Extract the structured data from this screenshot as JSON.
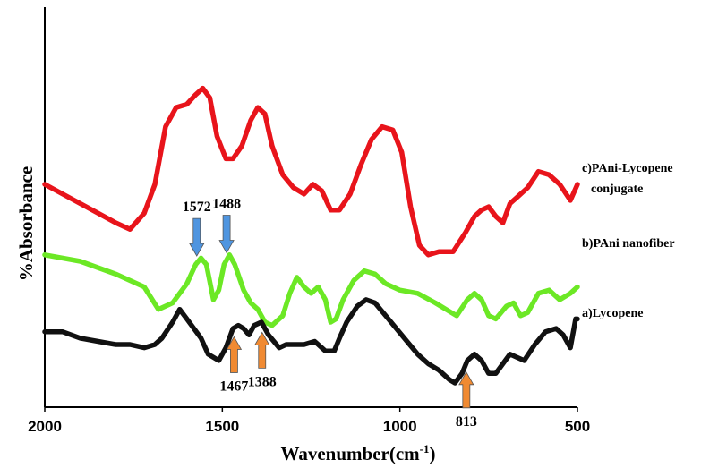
{
  "chart_data": {
    "type": "line",
    "xlabel": "Wavenumber(cm",
    "xlabel_sup": "-1",
    "xlabel_close": ")",
    "ylabel": "%Absorbance",
    "xlim": [
      2000,
      500
    ],
    "x_reversed": true,
    "ylim": [
      0,
      100
    ],
    "x_ticks": [
      {
        "value": 2000,
        "label": "2000"
      },
      {
        "value": 1500,
        "label": "1500"
      },
      {
        "value": 1000,
        "label": "1000"
      },
      {
        "value": 500,
        "label": "500"
      }
    ],
    "grid": false,
    "series": [
      {
        "name": "c)PAni-Lycopene",
        "name_line2": "conjugate",
        "color": "#e8141b",
        "points": [
          [
            2000,
            62
          ],
          [
            1900,
            56
          ],
          [
            1800,
            50
          ],
          [
            1760,
            48
          ],
          [
            1720,
            53
          ],
          [
            1690,
            62
          ],
          [
            1660,
            80
          ],
          [
            1630,
            86
          ],
          [
            1600,
            87
          ],
          [
            1575,
            90
          ],
          [
            1555,
            92
          ],
          [
            1535,
            89
          ],
          [
            1515,
            77
          ],
          [
            1490,
            70
          ],
          [
            1470,
            70
          ],
          [
            1445,
            74
          ],
          [
            1420,
            82
          ],
          [
            1400,
            86
          ],
          [
            1380,
            84
          ],
          [
            1360,
            74
          ],
          [
            1330,
            65
          ],
          [
            1300,
            61
          ],
          [
            1270,
            59
          ],
          [
            1245,
            62
          ],
          [
            1220,
            60
          ],
          [
            1195,
            54
          ],
          [
            1170,
            54
          ],
          [
            1140,
            59
          ],
          [
            1110,
            68
          ],
          [
            1080,
            76
          ],
          [
            1050,
            80
          ],
          [
            1020,
            79
          ],
          [
            995,
            72
          ],
          [
            970,
            55
          ],
          [
            945,
            43
          ],
          [
            920,
            40
          ],
          [
            890,
            41
          ],
          [
            850,
            41
          ],
          [
            815,
            47
          ],
          [
            790,
            52
          ],
          [
            770,
            54
          ],
          [
            750,
            55
          ],
          [
            730,
            52
          ],
          [
            710,
            50
          ],
          [
            690,
            56
          ],
          [
            670,
            58
          ],
          [
            640,
            61
          ],
          [
            610,
            66
          ],
          [
            580,
            65
          ],
          [
            550,
            62
          ],
          [
            520,
            57
          ],
          [
            500,
            62
          ]
        ]
      },
      {
        "name": "b)PAni nanofiber",
        "color": "#6ce825",
        "points": [
          [
            2000,
            40
          ],
          [
            1900,
            38
          ],
          [
            1800,
            34
          ],
          [
            1720,
            30
          ],
          [
            1680,
            23
          ],
          [
            1640,
            25
          ],
          [
            1600,
            31
          ],
          [
            1575,
            37
          ],
          [
            1560,
            39
          ],
          [
            1545,
            37
          ],
          [
            1525,
            26
          ],
          [
            1510,
            29
          ],
          [
            1495,
            37
          ],
          [
            1480,
            40
          ],
          [
            1465,
            37
          ],
          [
            1440,
            29
          ],
          [
            1420,
            25
          ],
          [
            1400,
            23
          ],
          [
            1380,
            19
          ],
          [
            1360,
            18
          ],
          [
            1330,
            21
          ],
          [
            1310,
            28
          ],
          [
            1290,
            33
          ],
          [
            1270,
            30
          ],
          [
            1250,
            28
          ],
          [
            1230,
            30
          ],
          [
            1210,
            26
          ],
          [
            1195,
            19
          ],
          [
            1180,
            20
          ],
          [
            1160,
            26
          ],
          [
            1130,
            32
          ],
          [
            1100,
            35
          ],
          [
            1070,
            34
          ],
          [
            1040,
            31
          ],
          [
            1000,
            29
          ],
          [
            950,
            28
          ],
          [
            900,
            25
          ],
          [
            870,
            23
          ],
          [
            840,
            21
          ],
          [
            810,
            26
          ],
          [
            790,
            28
          ],
          [
            770,
            26
          ],
          [
            750,
            21
          ],
          [
            730,
            20
          ],
          [
            700,
            24
          ],
          [
            680,
            25
          ],
          [
            660,
            21
          ],
          [
            640,
            22
          ],
          [
            610,
            28
          ],
          [
            580,
            29
          ],
          [
            550,
            26
          ],
          [
            520,
            28
          ],
          [
            500,
            30
          ]
        ]
      },
      {
        "name": "a)Lycopene",
        "color": "#111111",
        "points": [
          [
            2000,
            16
          ],
          [
            1950,
            16
          ],
          [
            1900,
            14
          ],
          [
            1850,
            13
          ],
          [
            1800,
            12
          ],
          [
            1760,
            12
          ],
          [
            1720,
            11
          ],
          [
            1690,
            12
          ],
          [
            1670,
            14
          ],
          [
            1640,
            19
          ],
          [
            1620,
            23
          ],
          [
            1600,
            20
          ],
          [
            1580,
            17
          ],
          [
            1560,
            14
          ],
          [
            1540,
            9
          ],
          [
            1510,
            7
          ],
          [
            1490,
            11
          ],
          [
            1470,
            17
          ],
          [
            1455,
            18
          ],
          [
            1440,
            17
          ],
          [
            1425,
            15
          ],
          [
            1410,
            18
          ],
          [
            1390,
            19
          ],
          [
            1370,
            15
          ],
          [
            1340,
            11
          ],
          [
            1320,
            12
          ],
          [
            1300,
            12
          ],
          [
            1270,
            12
          ],
          [
            1240,
            13
          ],
          [
            1210,
            10
          ],
          [
            1185,
            10
          ],
          [
            1170,
            14
          ],
          [
            1150,
            19
          ],
          [
            1120,
            24
          ],
          [
            1095,
            26
          ],
          [
            1070,
            25
          ],
          [
            1040,
            21
          ],
          [
            1010,
            17
          ],
          [
            980,
            13
          ],
          [
            950,
            9
          ],
          [
            920,
            6
          ],
          [
            890,
            4
          ],
          [
            860,
            1
          ],
          [
            845,
            0
          ],
          [
            825,
            3
          ],
          [
            810,
            7
          ],
          [
            790,
            9
          ],
          [
            770,
            7
          ],
          [
            750,
            3
          ],
          [
            730,
            3
          ],
          [
            710,
            6
          ],
          [
            690,
            9
          ],
          [
            670,
            8
          ],
          [
            650,
            7
          ],
          [
            620,
            12
          ],
          [
            590,
            16
          ],
          [
            560,
            17
          ],
          [
            540,
            15
          ],
          [
            520,
            11
          ],
          [
            505,
            20
          ],
          [
            500,
            20
          ]
        ]
      }
    ],
    "annotations": [
      {
        "label": "1572",
        "x": 1572,
        "series": 1,
        "direction": "down",
        "color": "#4f95e0"
      },
      {
        "label": "1488",
        "x": 1488,
        "series": 1,
        "direction": "down",
        "color": "#4f95e0"
      },
      {
        "label": "1467",
        "x": 1467,
        "series": 2,
        "direction": "up",
        "color": "#f08a32"
      },
      {
        "label": "1388",
        "x": 1388,
        "series": 2,
        "direction": "up",
        "color": "#f08a32"
      },
      {
        "label": "813",
        "x": 813,
        "series": 2,
        "direction": "up",
        "color": "#f08a32"
      }
    ]
  }
}
